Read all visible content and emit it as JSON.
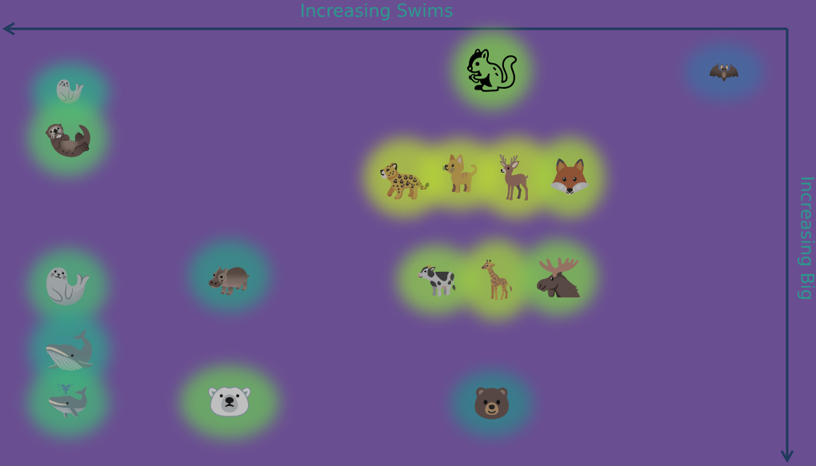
{
  "axes": {
    "x_label": "Increasing Swims",
    "y_label": "Increasing Big",
    "axis_color": "#1f3a5c",
    "label_color": "#2b9a8d",
    "background": "#6a4e92"
  },
  "animals": [
    {
      "name": "seal",
      "icon": "seal-icon",
      "glow": "#2fae8a"
    },
    {
      "name": "otter",
      "icon": "otter-icon",
      "glow": "#5bc46a"
    },
    {
      "name": "squirrel",
      "icon": "squirrel-icon",
      "glow": "#7ccc4a"
    },
    {
      "name": "bat",
      "icon": "bat-icon",
      "glow": "#3f6ea0"
    },
    {
      "name": "jaguar",
      "icon": "jaguar-icon",
      "glow": "#b8d836"
    },
    {
      "name": "lynx",
      "icon": "lynx-icon",
      "glow": "#b8d836"
    },
    {
      "name": "deer",
      "icon": "deer-icon",
      "glow": "#b8d836"
    },
    {
      "name": "fox",
      "icon": "fox-icon",
      "glow": "#a6d43c"
    },
    {
      "name": "walrus",
      "icon": "walrus-icon",
      "glow": "#4bb874"
    },
    {
      "name": "hippo",
      "icon": "hippo-icon",
      "glow": "#2e9a86"
    },
    {
      "name": "cow",
      "icon": "cow-icon",
      "glow": "#8fd04a"
    },
    {
      "name": "giraffe",
      "icon": "giraffe-icon",
      "glow": "#a2d43e"
    },
    {
      "name": "moose",
      "icon": "moose-icon",
      "glow": "#7fca4e"
    },
    {
      "name": "orca",
      "icon": "orca-icon",
      "glow": "#2fa68c"
    },
    {
      "name": "whale",
      "icon": "whale-icon",
      "glow": "#44b878"
    },
    {
      "name": "polar bear",
      "icon": "polar-bear-icon",
      "glow": "#6cc25a"
    },
    {
      "name": "bear",
      "icon": "bear-icon",
      "glow": "#2a8a8a"
    }
  ]
}
